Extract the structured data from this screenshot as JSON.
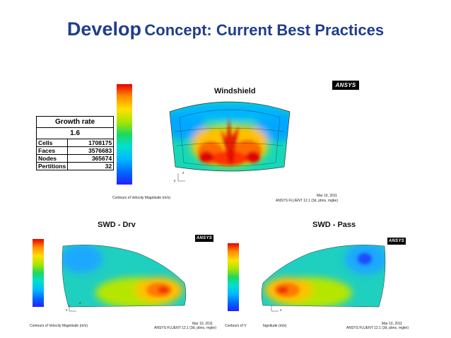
{
  "title": {
    "bold_word": "Develop",
    "rest": "Concept: Current Best Practices"
  },
  "top_panel": {
    "title": "Windshield",
    "logo": "ANSYS",
    "contour_caption": "Contours of Velocity Magnitude (m/s)",
    "date": "Mar 10, 2011",
    "solver": "ANSYS FLUENT 12.1 (3d, pbns, rngke)",
    "axis_z": "z",
    "axis_y": "y"
  },
  "growth_table": {
    "header": "Growth rate",
    "rate": "1.6",
    "rows": [
      {
        "label": "Cells",
        "value": "1708175"
      },
      {
        "label": "Faces",
        "value": "3576683"
      },
      {
        "label": "Nodes",
        "value": "365674"
      },
      {
        "label": "Pertitions",
        "value": "32"
      }
    ]
  },
  "left_panel": {
    "title": "SWD - Drv",
    "logo": "ANSYS",
    "contour_caption": "Contours of Velocity Magnitude (m/s)",
    "date": "Mar 10, 2011",
    "solver": "ANSYS FLUENT 12.1 (3d, pbns, rngke)",
    "axis_z": "z",
    "axis_x": "x"
  },
  "right_panel": {
    "title": "SWD - Pass",
    "logo": "ANSYS",
    "contour_caption_a": "Contours of V",
    "contour_caption_b": "fagnitude (m/s)",
    "date": "Mar 10, 2011",
    "solver": "ANSYS FLUENT 12.1 (3d, pbns, rngke)",
    "axis_x": "x"
  }
}
